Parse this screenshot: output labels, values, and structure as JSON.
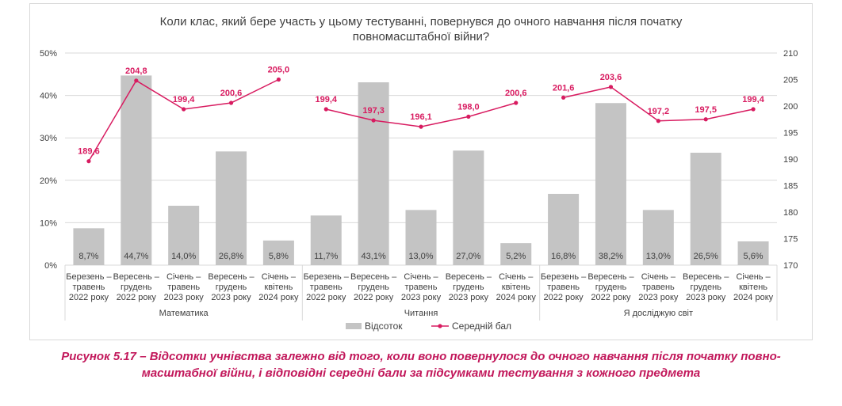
{
  "chart_data": {
    "type": "bar",
    "title_lines": [
      "Коли клас, який бере участь у цьому тестуванні, повернувся до очного навчання після початку",
      "повномасштабної війни?"
    ],
    "groups": [
      "Математика",
      "Читання",
      "Я досліджую світ"
    ],
    "categories": [
      [
        "Березень –",
        "травень",
        "2022 року"
      ],
      [
        "Вересень –",
        "грудень",
        "2022 року"
      ],
      [
        "Січень –",
        "травень",
        "2023 року"
      ],
      [
        "Вересень –",
        "грудень",
        "2023 року"
      ],
      [
        "Січень –",
        "квітень",
        "2024 року"
      ]
    ],
    "series": [
      {
        "name": "Відсоток",
        "kind": "bar",
        "axis": "left",
        "values": [
          [
            8.7,
            44.7,
            14.0,
            26.8,
            5.8
          ],
          [
            11.7,
            43.1,
            13.0,
            27.0,
            5.2
          ],
          [
            16.8,
            38.2,
            13.0,
            26.5,
            5.6
          ]
        ],
        "labels": [
          [
            "8,7%",
            "44,7%",
            "14,0%",
            "26,8%",
            "5,8%"
          ],
          [
            "11,7%",
            "43,1%",
            "13,0%",
            "27,0%",
            "5,2%"
          ],
          [
            "16,8%",
            "38,2%",
            "13,0%",
            "26,5%",
            "5,6%"
          ]
        ]
      },
      {
        "name": "Середній бал",
        "kind": "line",
        "axis": "right",
        "values": [
          [
            189.6,
            204.8,
            199.4,
            200.6,
            205.0
          ],
          [
            199.4,
            197.3,
            196.1,
            198.0,
            200.6
          ],
          [
            201.6,
            203.6,
            197.2,
            197.5,
            199.4
          ]
        ],
        "labels": [
          [
            "189,6",
            "204,8",
            "199,4",
            "200,6",
            "205,0"
          ],
          [
            "199,4",
            "197,3",
            "196,1",
            "198,0",
            "200,6"
          ],
          [
            "201,6",
            "203,6",
            "197,2",
            "197,5",
            "199,4"
          ]
        ]
      }
    ],
    "y_left": {
      "range": [
        0,
        50
      ],
      "ticks": [
        0,
        10,
        20,
        30,
        40,
        50
      ],
      "tick_labels": [
        "0%",
        "10%",
        "20%",
        "30%",
        "40%",
        "50%"
      ]
    },
    "y_right": {
      "range": [
        170,
        210
      ],
      "ticks": [
        170,
        175,
        180,
        185,
        190,
        195,
        200,
        205,
        210
      ],
      "tick_labels": [
        "170",
        "175",
        "180",
        "185",
        "190",
        "195",
        "200",
        "205",
        "210"
      ]
    },
    "grid": true,
    "legend_position": "bottom"
  },
  "colors": {
    "bar": "#c4c4c4",
    "line": "#d81b60",
    "grid": "#d9d9d9",
    "text": "#404040",
    "caption": "#c2185b"
  },
  "caption_lines": [
    "Рисунок 5.17 – Відсотки учнівства залежно від того, коли воно повернулося до очного навчання після початку повно-",
    "масштабної війни, і відповідні середні бали за підсумками тестування з кожного предмета"
  ]
}
